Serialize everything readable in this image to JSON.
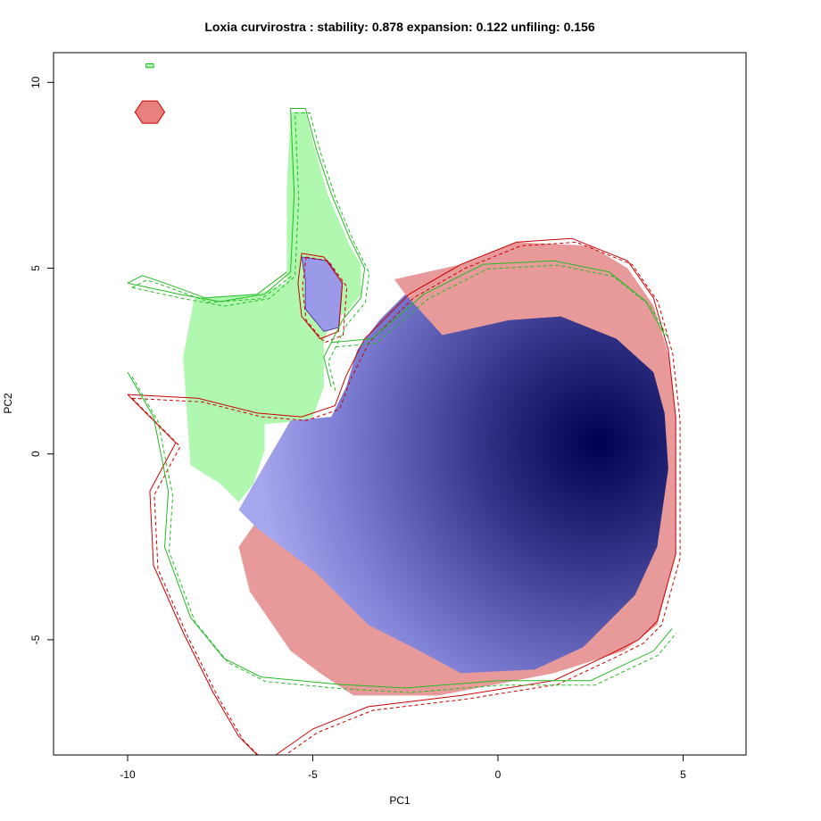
{
  "chart_data": {
    "type": "niche-overlap-raster",
    "title": "Loxia curvirostra : stability: 0.878 expansion: 0.122 unfiling: 0.156",
    "xlabel": "PC1",
    "ylabel": "PC2",
    "xlim": [
      -12,
      6.7
    ],
    "ylim": [
      -8.1,
      10.8
    ],
    "xticks": [
      -10,
      -5,
      0,
      5
    ],
    "yticks": [
      -5,
      0,
      5,
      10
    ],
    "xtick_labels": [
      "-10",
      "-5",
      "0",
      "5"
    ],
    "ytick_labels": [
      "-5",
      "0",
      "5",
      "10"
    ],
    "metrics": {
      "stability": 0.878,
      "expansion": 0.122,
      "unfiling": 0.156
    },
    "colors": {
      "stability_fill": "#9a9ae8",
      "stability_dark": "#000050",
      "expansion_fill": "#e89a9a",
      "unfilling_fill": "#b0f7b0",
      "native_contour": "#cc0000",
      "invaded_contour": "#22bb22",
      "axis": "#000000"
    },
    "density_peak": {
      "x": 2.7,
      "y": 0.3
    },
    "unfilling_green_region": [
      [
        -5.6,
        9.2
      ],
      [
        -5.2,
        9.2
      ],
      [
        -5.0,
        8.4
      ],
      [
        -4.6,
        7.0
      ],
      [
        -4.0,
        5.6
      ],
      [
        -3.7,
        5.1
      ],
      [
        -3.7,
        4.3
      ],
      [
        -4.1,
        3.8
      ],
      [
        -4.5,
        3.6
      ],
      [
        -4.7,
        3.0
      ],
      [
        -4.7,
        1.8
      ],
      [
        -5.0,
        1.0
      ],
      [
        -5.2,
        0.9
      ],
      [
        -6.3,
        0.8
      ],
      [
        -6.3,
        0.1
      ],
      [
        -6.6,
        -0.8
      ],
      [
        -7.0,
        -1.3
      ],
      [
        -7.5,
        -0.8
      ],
      [
        -8.3,
        -0.3
      ],
      [
        -8.5,
        2.6
      ],
      [
        -8.2,
        4.2
      ],
      [
        -6.5,
        4.3
      ],
      [
        -5.7,
        4.6
      ],
      [
        -5.7,
        7.2
      ]
    ],
    "unfilling_green_islet": [
      [
        -9.5,
        10.5
      ],
      [
        -9.3,
        10.5
      ],
      [
        -9.3,
        10.4
      ],
      [
        -9.5,
        10.4
      ]
    ],
    "expansion_red_region": [
      [
        -2.8,
        4.7
      ],
      [
        -1.0,
        5.1
      ],
      [
        0.5,
        5.7
      ],
      [
        2.5,
        5.6
      ],
      [
        3.5,
        5.0
      ],
      [
        4.2,
        4.0
      ],
      [
        4.6,
        2.7
      ],
      [
        4.8,
        1.0
      ],
      [
        4.8,
        -2.7
      ],
      [
        4.3,
        -4.6
      ],
      [
        3.4,
        -5.3
      ],
      [
        1.5,
        -5.9
      ],
      [
        -1.6,
        -6.5
      ],
      [
        -3.9,
        -6.5
      ],
      [
        -4.8,
        -5.9
      ],
      [
        -5.6,
        -5.3
      ],
      [
        -6.7,
        -3.7
      ],
      [
        -7.0,
        -2.5
      ],
      [
        -6.3,
        -1.5
      ],
      [
        -4.0,
        -1.0
      ],
      [
        -3.0,
        2.3
      ],
      [
        -2.0,
        3.6
      ]
    ],
    "expansion_red_islet": [
      [
        -9.6,
        9.5
      ],
      [
        -9.2,
        9.5
      ],
      [
        -9.0,
        9.2
      ],
      [
        -9.2,
        8.9
      ],
      [
        -9.6,
        8.9
      ],
      [
        -9.8,
        9.2
      ]
    ],
    "stability_blue_region": [
      [
        -2.5,
        4.3
      ],
      [
        -1.5,
        3.2
      ],
      [
        0.3,
        3.6
      ],
      [
        1.7,
        3.7
      ],
      [
        3.2,
        3.1
      ],
      [
        4.2,
        2.2
      ],
      [
        4.5,
        1.1
      ],
      [
        4.6,
        -0.4
      ],
      [
        4.3,
        -2.5
      ],
      [
        3.7,
        -3.8
      ],
      [
        2.3,
        -5.2
      ],
      [
        1.0,
        -5.8
      ],
      [
        -1.0,
        -5.9
      ],
      [
        -2.3,
        -5.2
      ],
      [
        -3.5,
        -4.6
      ],
      [
        -4.9,
        -3.2
      ],
      [
        -6.5,
        -2.0
      ],
      [
        -7.0,
        -1.5
      ],
      [
        -6.3,
        -0.3
      ],
      [
        -5.6,
        0.9
      ],
      [
        -4.5,
        1.0
      ],
      [
        -4.1,
        1.8
      ],
      [
        -3.8,
        2.8
      ],
      [
        -3.2,
        3.6
      ]
    ],
    "stability_blue_lobe": [
      [
        -5.3,
        5.3
      ],
      [
        -4.6,
        5.2
      ],
      [
        -4.2,
        4.6
      ],
      [
        -4.3,
        3.4
      ],
      [
        -4.7,
        3.3
      ],
      [
        -5.2,
        3.9
      ],
      [
        -5.2,
        4.7
      ]
    ],
    "native_contour_lines": [
      [
        [
          -10.0,
          1.6
        ],
        [
          -8.1,
          1.5
        ],
        [
          -6.5,
          1.1
        ],
        [
          -5.3,
          1.0
        ],
        [
          -4.4,
          1.3
        ],
        [
          -4.1,
          2.1
        ],
        [
          -3.6,
          3.1
        ],
        [
          -2.4,
          4.3
        ],
        [
          -1.0,
          5.1
        ],
        [
          0.5,
          5.7
        ],
        [
          2.0,
          5.8
        ],
        [
          3.5,
          5.2
        ],
        [
          4.2,
          4.2
        ],
        [
          4.6,
          2.8
        ],
        [
          4.8,
          1.0
        ],
        [
          4.8,
          -2.7
        ],
        [
          4.3,
          -4.5
        ],
        [
          3.8,
          -5.0
        ],
        [
          3.0,
          -5.4
        ],
        [
          1.5,
          -6.1
        ],
        [
          -1.0,
          -6.5
        ],
        [
          -3.5,
          -6.8
        ],
        [
          -5.0,
          -7.4
        ],
        [
          -6.0,
          -8.1
        ]
      ],
      [
        [
          -10.0,
          1.6
        ],
        [
          -8.7,
          0.3
        ],
        [
          -9.4,
          -1.0
        ],
        [
          -9.3,
          -3.0
        ],
        [
          -8.5,
          -4.8
        ],
        [
          -7.7,
          -6.4
        ],
        [
          -7.0,
          -7.6
        ],
        [
          -6.5,
          -8.1
        ]
      ],
      [
        [
          -5.3,
          5.4
        ],
        [
          -4.7,
          5.3
        ],
        [
          -4.2,
          4.6
        ],
        [
          -4.3,
          3.3
        ],
        [
          -4.8,
          3.1
        ],
        [
          -5.3,
          3.7
        ],
        [
          -5.4,
          4.6
        ],
        [
          -5.3,
          5.4
        ]
      ]
    ],
    "invaded_contour_lines": [
      [
        [
          -10.0,
          4.6
        ],
        [
          -8.6,
          4.3
        ],
        [
          -7.5,
          4.1
        ],
        [
          -6.3,
          4.3
        ],
        [
          -5.6,
          4.9
        ],
        [
          -5.5,
          7.0
        ],
        [
          -5.6,
          9.3
        ],
        [
          -5.2,
          9.3
        ],
        [
          -4.9,
          8.2
        ],
        [
          -4.5,
          7.0
        ],
        [
          -4.0,
          5.8
        ],
        [
          -3.6,
          5.0
        ],
        [
          -3.7,
          4.2
        ],
        [
          -4.2,
          3.6
        ],
        [
          -4.7,
          2.6
        ],
        [
          -4.5,
          1.8
        ]
      ],
      [
        [
          -4.5,
          3.0
        ],
        [
          -3.4,
          3.1
        ],
        [
          -2.0,
          4.3
        ],
        [
          -0.4,
          5.1
        ],
        [
          1.5,
          5.2
        ],
        [
          3.0,
          4.9
        ],
        [
          4.0,
          4.1
        ],
        [
          4.5,
          3.2
        ]
      ],
      [
        [
          -10.0,
          2.2
        ],
        [
          -9.3,
          1.0
        ],
        [
          -8.9,
          -1.0
        ],
        [
          -9.0,
          -2.5
        ],
        [
          -8.3,
          -4.4
        ],
        [
          -7.4,
          -5.5
        ],
        [
          -6.4,
          -6.0
        ],
        [
          -4.3,
          -6.2
        ],
        [
          -2.5,
          -6.3
        ],
        [
          0.0,
          -6.1
        ],
        [
          2.5,
          -6.1
        ],
        [
          4.2,
          -5.3
        ],
        [
          4.7,
          -4.7
        ]
      ],
      [
        [
          -10.0,
          4.6
        ],
        [
          -9.6,
          4.8
        ],
        [
          -9.0,
          4.6
        ],
        [
          -7.9,
          4.2
        ],
        [
          -6.5,
          4.3
        ],
        [
          -5.7,
          4.9
        ]
      ]
    ]
  }
}
